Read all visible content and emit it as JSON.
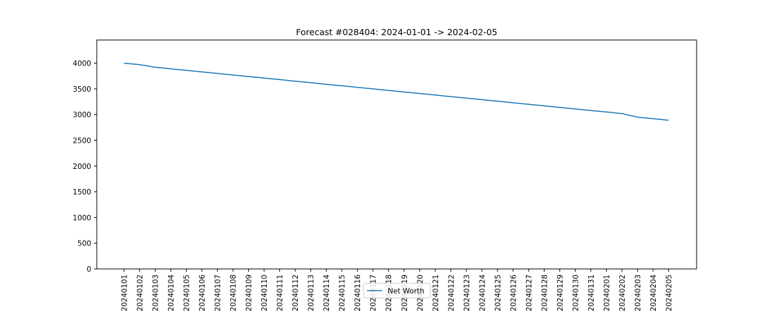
{
  "chart_data": {
    "type": "line",
    "title": "Forecast #028404: 2024-01-01 -> 2024-02-05",
    "xlabel": "",
    "ylabel": "",
    "x": [
      "20240101",
      "20240102",
      "20240103",
      "20240104",
      "20240105",
      "20240106",
      "20240107",
      "20240108",
      "20240109",
      "20240110",
      "20240111",
      "20240112",
      "20240113",
      "20240114",
      "20240115",
      "20240116",
      "20240117",
      "20240118",
      "20240119",
      "20240120",
      "20240121",
      "20240122",
      "20240123",
      "20240124",
      "20240125",
      "20240126",
      "20240127",
      "20240128",
      "20240129",
      "20240130",
      "20240131",
      "20240201",
      "20240202",
      "20240203",
      "20240204",
      "20240205"
    ],
    "series": [
      {
        "name": "Net Worth",
        "color": "#1f77b4",
        "values": [
          4000,
          3970,
          3920,
          3890,
          3860,
          3830,
          3800,
          3770,
          3740,
          3710,
          3680,
          3650,
          3620,
          3590,
          3560,
          3530,
          3500,
          3470,
          3440,
          3410,
          3380,
          3350,
          3320,
          3290,
          3260,
          3230,
          3200,
          3170,
          3140,
          3110,
          3080,
          3050,
          3020,
          2950,
          2920,
          2890
        ]
      }
    ],
    "ylim": [
      0,
      4450
    ],
    "yticks": [
      0,
      500,
      1000,
      1500,
      2000,
      2500,
      3000,
      3500,
      4000
    ],
    "grid": false,
    "legend_position": "lower-center"
  }
}
